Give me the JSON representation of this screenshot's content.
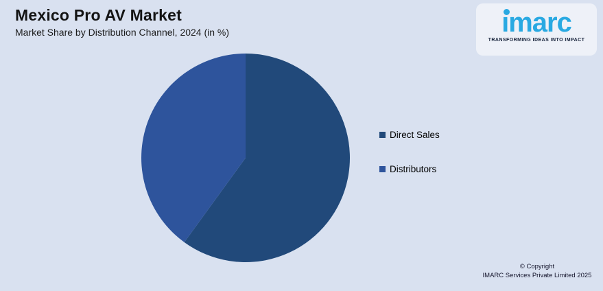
{
  "header": {
    "title": "Mexico Pro AV Market",
    "subtitle": "Market Share by Distribution Channel, 2024 (in %)"
  },
  "logo": {
    "brand": "imarc",
    "tagline": "TRANSFORMING IDEAS INTO IMPACT",
    "brand_color": "#29A9E2"
  },
  "colors": {
    "background": "#D9E1F0",
    "direct_sales": "#21497A",
    "distributors": "#2E549C"
  },
  "chart_data": {
    "type": "pie",
    "title": "Mexico Pro AV Market — Market Share by Distribution Channel, 2024 (in %)",
    "categories": [
      "Direct Sales",
      "Distributors"
    ],
    "values": [
      60,
      40
    ],
    "colors": [
      "#21497A",
      "#2E549C"
    ],
    "start_angle_deg": -90,
    "direction": "clockwise",
    "legend_position": "right",
    "data_labels_shown": false
  },
  "legend": {
    "items": [
      {
        "label": "Direct Sales",
        "color": "#21497A"
      },
      {
        "label": "Distributors",
        "color": "#2E549C"
      }
    ]
  },
  "footer": {
    "copyright_line1": "© Copyright",
    "copyright_line2": "IMARC Services Private Limited 2025"
  }
}
